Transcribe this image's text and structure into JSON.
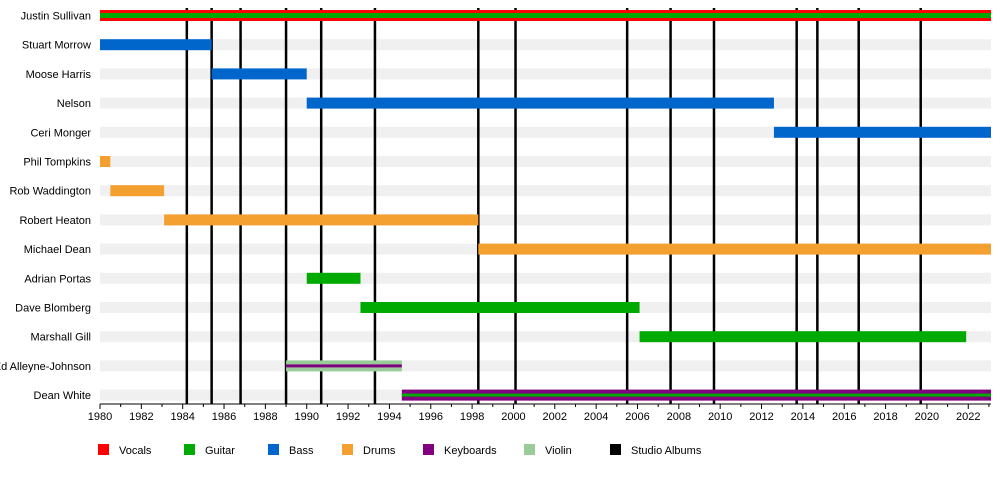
{
  "chart_data": {
    "type": "bar",
    "subtype": "timeline",
    "title": "",
    "xlim": [
      1980,
      2023.1
    ],
    "x_ticks": [
      "1980",
      "1982",
      "1984",
      "1986",
      "1988",
      "1990",
      "1992",
      "1994",
      "1996",
      "1998",
      "2000",
      "2002",
      "2004",
      "2006",
      "2008",
      "2010",
      "2012",
      "2014",
      "2016",
      "2018",
      "2020",
      "2022"
    ],
    "grid": "alternating row bands",
    "legend_position": "bottom",
    "members": [
      "Justin Sullivan",
      "Stuart Morrow",
      "Moose Harris",
      "Nelson",
      "Ceri Monger",
      "Phil Tompkins",
      "Rob Waddington",
      "Robert Heaton",
      "Michael Dean",
      "Adrian Portas",
      "Dave Blomberg",
      "Marshall Gill",
      "Ed Alleyne-Johnson",
      "Dean White"
    ],
    "legend": [
      {
        "label": "Vocals",
        "color": "#ff0000"
      },
      {
        "label": "Guitar",
        "color": "#00aa00"
      },
      {
        "label": "Bass",
        "color": "#0066cc"
      },
      {
        "label": "Drums",
        "color": "#f4a030"
      },
      {
        "label": "Keyboards",
        "color": "#800080"
      },
      {
        "label": "Violin",
        "color": "#99cc99"
      },
      {
        "label": "Studio Albums",
        "color": "#000000"
      }
    ],
    "bars": [
      {
        "member": "Justin Sullivan",
        "roles": [
          "Vocals",
          "Guitar"
        ],
        "start": 1980,
        "end": 2023.1
      },
      {
        "member": "Stuart Morrow",
        "roles": [
          "Bass"
        ],
        "start": 1980,
        "end": 1985.4
      },
      {
        "member": "Moose Harris",
        "roles": [
          "Bass"
        ],
        "start": 1985.4,
        "end": 1990
      },
      {
        "member": "Nelson",
        "roles": [
          "Bass"
        ],
        "start": 1990,
        "end": 2012.6
      },
      {
        "member": "Ceri Monger",
        "roles": [
          "Bass"
        ],
        "start": 2012.6,
        "end": 2023.1
      },
      {
        "member": "Phil Tompkins",
        "roles": [
          "Drums"
        ],
        "start": 1980,
        "end": 1980.5
      },
      {
        "member": "Rob Waddington",
        "roles": [
          "Drums"
        ],
        "start": 1980.5,
        "end": 1983.1
      },
      {
        "member": "Robert Heaton",
        "roles": [
          "Drums"
        ],
        "start": 1983.1,
        "end": 1998.3
      },
      {
        "member": "Michael Dean",
        "roles": [
          "Drums"
        ],
        "start": 1998.3,
        "end": 2023.1
      },
      {
        "member": "Adrian Portas",
        "roles": [
          "Guitar"
        ],
        "start": 1990,
        "end": 1992.6
      },
      {
        "member": "Dave Blomberg",
        "roles": [
          "Guitar"
        ],
        "start": 1992.6,
        "end": 2006.1
      },
      {
        "member": "Marshall Gill",
        "roles": [
          "Guitar"
        ],
        "start": 2006.1,
        "end": 2021.9
      },
      {
        "member": "Ed Alleyne-Johnson",
        "roles": [
          "Violin",
          "Keyboards"
        ],
        "start": 1989,
        "end": 1994.6
      },
      {
        "member": "Dean White",
        "roles": [
          "Keyboards",
          "Guitar"
        ],
        "start": 1994.6,
        "end": 2023.1
      }
    ],
    "studio_albums": [
      1984.2,
      1985.4,
      1986.8,
      1989.0,
      1990.7,
      1993.3,
      1998.3,
      2000.1,
      2005.5,
      2007.6,
      2009.7,
      2013.7,
      2014.7,
      2016.7,
      2019.7
    ]
  }
}
